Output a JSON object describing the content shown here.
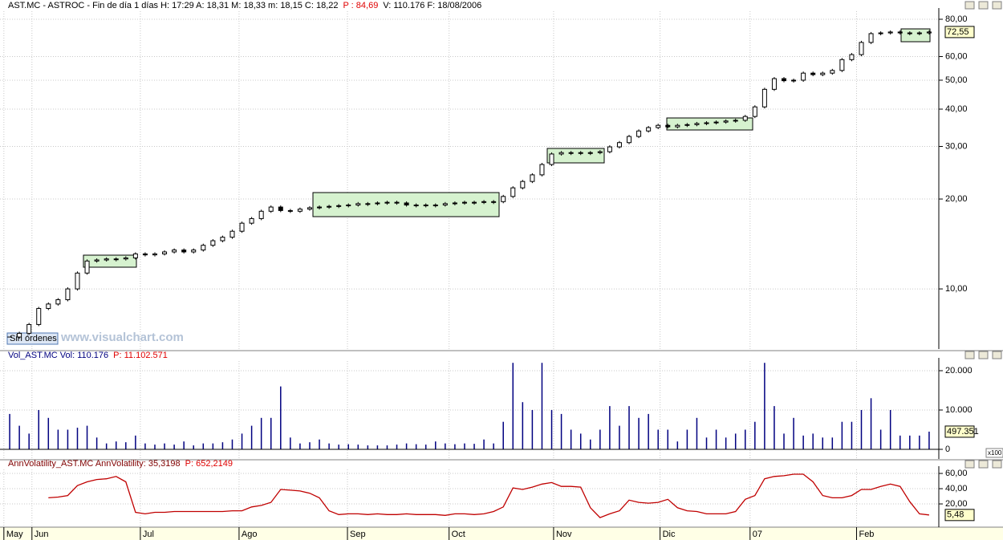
{
  "ui": {
    "orders_button": "Sin órdenes",
    "watermark": "www.visualchart.com",
    "scale_note": "x100"
  },
  "chart_data": [
    {
      "type": "candlestick",
      "title_parts": [
        {
          "text": "AST.MC - ASTROC - Fin de día 1 días H: 17:29 A: 18,31 M: 18,33 m: 18,15 C: 18,22",
          "color": "#000000"
        },
        {
          "text": "P : 84,69",
          "color": "#e00000"
        },
        {
          "text": "V: 110.176 F: 18/08/2006",
          "color": "#000000"
        }
      ],
      "values": [
        6.9,
        7.1,
        7.6,
        8.6,
        8.9,
        9.2,
        10.0,
        11.3,
        12.4,
        12.5,
        12.6,
        12.6,
        12.7,
        13.1,
        13.0,
        13.1,
        13.3,
        13.5,
        13.3,
        13.5,
        14.0,
        14.5,
        14.9,
        15.6,
        16.6,
        17.2,
        18.2,
        18.8,
        18.3,
        18.2,
        18.5,
        18.7,
        18.8,
        18.9,
        19.0,
        19.1,
        19.3,
        19.3,
        19.4,
        19.5,
        19.4,
        19.1,
        19.1,
        19.1,
        19.1,
        19.3,
        19.4,
        19.5,
        19.5,
        19.6,
        19.6,
        20.4,
        21.8,
        22.9,
        24.1,
        26.1,
        28.3,
        28.6,
        28.6,
        28.6,
        28.6,
        28.8,
        29.9,
        30.9,
        32.4,
        33.8,
        34.7,
        35.3,
        34.9,
        35.3,
        35.5,
        35.8,
        36.0,
        36.2,
        36.5,
        36.7,
        37.8,
        40.7,
        46.6,
        50.6,
        49.8,
        50.0,
        52.8,
        52.2,
        52.8,
        53.9,
        58.6,
        60.9,
        66.9,
        71.6,
        72.0,
        72.5,
        72.0,
        71.6,
        72.0,
        72.5
      ],
      "last_label": "72,55",
      "color": "#000000",
      "log_scale": true,
      "grid": true,
      "xlim": [
        -1,
        96
      ],
      "ylim": [
        6.29,
        85.1
      ],
      "yticks": [
        {
          "value": 10,
          "label": "10,00"
        },
        {
          "value": 20,
          "label": "20,00"
        },
        {
          "value": 30,
          "label": "30,00"
        },
        {
          "value": 40,
          "label": "40,00"
        },
        {
          "value": 50,
          "label": "50,00"
        },
        {
          "value": 60,
          "label": "60,00"
        },
        {
          "value": 80,
          "label": "80,00"
        }
      ]
    },
    {
      "type": "bar",
      "title_parts": [
        {
          "text": "Vol_AST.MC  Vol: 110.176",
          "color": "#000080"
        },
        {
          "text": "P: 11.102.571",
          "color": "#e00000"
        }
      ],
      "values": [
        9000,
        6000,
        4000,
        10000,
        8000,
        5000,
        5000,
        5500,
        6000,
        3000,
        1500,
        2000,
        1800,
        3500,
        1500,
        1200,
        1500,
        1200,
        2000,
        1000,
        1500,
        1500,
        1800,
        2500,
        4000,
        6000,
        8000,
        8000,
        16000,
        3000,
        1500,
        1800,
        2500,
        1500,
        1200,
        1300,
        1200,
        1000,
        1000,
        1000,
        1200,
        1500,
        1300,
        1200,
        2000,
        1500,
        1300,
        1500,
        1400,
        2500,
        1500,
        7000,
        22000,
        12000,
        10000,
        22000,
        10000,
        9000,
        5000,
        4000,
        2500,
        5000,
        11000,
        6000,
        11000,
        8000,
        9000,
        5000,
        5000,
        2000,
        5000,
        8000,
        3000,
        5000,
        3000,
        4000,
        5000,
        7000,
        22000,
        11000,
        4000,
        8000,
        3500,
        4000,
        3000,
        3000,
        7000,
        7000,
        10000,
        13000,
        5000,
        10000,
        3500,
        3500,
        3500,
        4500
      ],
      "last_label": "497.351",
      "color": "#000080",
      "grid": true,
      "xlim": [
        -1,
        96
      ],
      "ylim": [
        -2450,
        22450
      ],
      "yticks": [
        0,
        {
          "value": 10000,
          "label": "10.000"
        },
        {
          "value": 20000,
          "label": "20.000"
        }
      ]
    },
    {
      "type": "line",
      "title_parts": [
        {
          "text": "AnnVolatility_AST.MC  AnnVolatility: 35,3198",
          "color": "#800000"
        },
        {
          "text": "P: 652,2149",
          "color": "#e00000"
        }
      ],
      "values": [
        null,
        null,
        null,
        null,
        28,
        29,
        31,
        44,
        49,
        52,
        53,
        56,
        49,
        9,
        7,
        9,
        9,
        10,
        10,
        10,
        10,
        10,
        10,
        11,
        11,
        16,
        18,
        22,
        39,
        38,
        37,
        34,
        28,
        11,
        6,
        7,
        7,
        6,
        7,
        6,
        6,
        7,
        6,
        6,
        6,
        5,
        7,
        7,
        6,
        7,
        10,
        16,
        41,
        39,
        42,
        46,
        48,
        43,
        43,
        42,
        15,
        2,
        7,
        11,
        25,
        22,
        21,
        22,
        26,
        15,
        11,
        10,
        7,
        7,
        7,
        10,
        26,
        31,
        53,
        56,
        57,
        59,
        59,
        49,
        31,
        28,
        28,
        31,
        39,
        39,
        43,
        46,
        43,
        23,
        7,
        5.48
      ],
      "last_label": "5,48",
      "color": "#c00000",
      "grid": true,
      "xlim": [
        -1,
        96
      ],
      "ylim": [
        -10.5,
        65.3
      ],
      "yticks": [
        {
          "value": 20,
          "label": "20,00"
        },
        {
          "value": 40,
          "label": "40,00"
        },
        {
          "value": 60,
          "label": "60,00"
        }
      ],
      "xticks": [
        {
          "value": -0.6,
          "label": "May"
        },
        {
          "value": 2.3,
          "label": "Jun"
        },
        {
          "value": 13.5,
          "label": "Jul"
        },
        {
          "value": 23.7,
          "label": "Ago"
        },
        {
          "value": 34.9,
          "label": "Sep"
        },
        {
          "value": 45.4,
          "label": "Oct"
        },
        {
          "value": 56.2,
          "label": "Nov"
        },
        {
          "value": 67.2,
          "label": "Dic"
        },
        {
          "value": 76.5,
          "label": "07"
        },
        {
          "value": 87.5,
          "label": "Feb"
        }
      ]
    }
  ]
}
